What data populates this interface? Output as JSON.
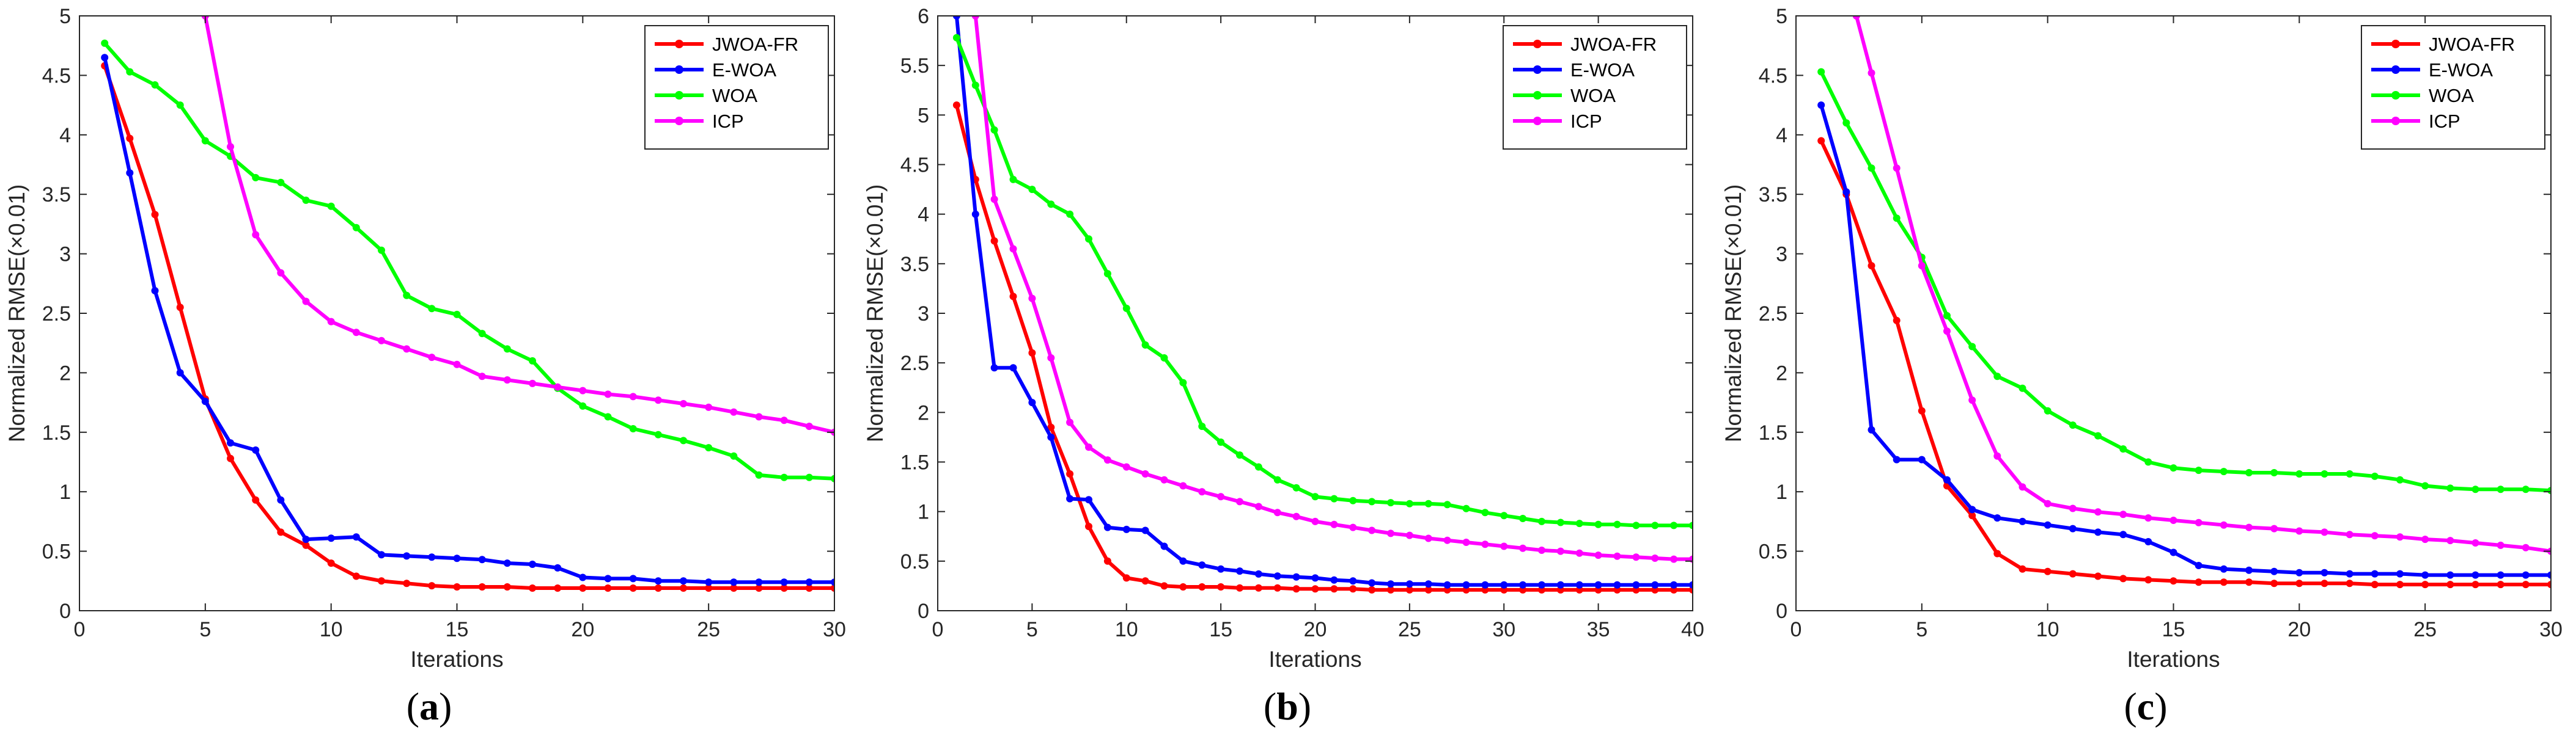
{
  "chart_data": [
    {
      "type": "line",
      "panel_label": "a",
      "xlabel": "Iterations",
      "ylabel": "Normalized RMSE(×0.01)",
      "xlim": [
        0,
        30
      ],
      "ylim": [
        0,
        5
      ],
      "xticks": [
        0,
        5,
        10,
        15,
        20,
        25,
        30
      ],
      "yticks": [
        0,
        0.5,
        1,
        1.5,
        2,
        2.5,
        3,
        3.5,
        4,
        4.5,
        5
      ],
      "grid": false,
      "legend": "top-right",
      "series": [
        {
          "name": "JWOA-FR",
          "color": "#ff0000",
          "x": [
            1,
            2,
            3,
            4,
            5,
            6,
            7,
            8,
            9,
            10,
            11,
            12,
            13,
            14,
            15,
            16,
            17,
            18,
            19,
            20,
            21,
            22,
            23,
            24,
            25,
            26,
            27,
            28,
            29,
            30
          ],
          "y": [
            4.58,
            3.97,
            3.33,
            2.55,
            1.78,
            1.28,
            0.93,
            0.66,
            0.55,
            0.4,
            0.29,
            0.25,
            0.23,
            0.21,
            0.2,
            0.2,
            0.2,
            0.19,
            0.19,
            0.19,
            0.19,
            0.19,
            0.19,
            0.19,
            0.19,
            0.19,
            0.19,
            0.19,
            0.19,
            0.19
          ]
        },
        {
          "name": "E-WOA",
          "color": "#0000ff",
          "x": [
            1,
            2,
            3,
            4,
            5,
            6,
            7,
            8,
            9,
            10,
            11,
            12,
            13,
            14,
            15,
            16,
            17,
            18,
            19,
            20,
            21,
            22,
            23,
            24,
            25,
            26,
            27,
            28,
            29,
            30
          ],
          "y": [
            4.65,
            3.68,
            2.69,
            2.0,
            1.76,
            1.41,
            1.35,
            0.93,
            0.6,
            0.61,
            0.62,
            0.47,
            0.46,
            0.45,
            0.44,
            0.43,
            0.4,
            0.39,
            0.36,
            0.28,
            0.27,
            0.27,
            0.25,
            0.25,
            0.24,
            0.24,
            0.24,
            0.24,
            0.24,
            0.24
          ]
        },
        {
          "name": "WOA",
          "color": "#00ff00",
          "x": [
            1,
            2,
            3,
            4,
            5,
            6,
            7,
            8,
            9,
            10,
            11,
            12,
            13,
            14,
            15,
            16,
            17,
            18,
            19,
            20,
            21,
            22,
            23,
            24,
            25,
            26,
            27,
            28,
            29,
            30
          ],
          "y": [
            4.77,
            4.53,
            4.42,
            4.25,
            3.95,
            3.82,
            3.64,
            3.6,
            3.45,
            3.4,
            3.22,
            3.03,
            2.65,
            2.54,
            2.49,
            2.33,
            2.2,
            2.1,
            1.87,
            1.72,
            1.63,
            1.53,
            1.48,
            1.43,
            1.37,
            1.3,
            1.14,
            1.12,
            1.12,
            1.11
          ]
        },
        {
          "name": "ICP",
          "color": "#ff00ff",
          "x": [
            5,
            6,
            7,
            8,
            9,
            10,
            11,
            12,
            13,
            14,
            15,
            16,
            17,
            18,
            19,
            20,
            21,
            22,
            23,
            24,
            25,
            26,
            27,
            28,
            29,
            30
          ],
          "y": [
            5.0,
            3.9,
            3.16,
            2.84,
            2.6,
            2.43,
            2.34,
            2.27,
            2.2,
            2.13,
            2.07,
            1.97,
            1.94,
            1.91,
            1.88,
            1.85,
            1.82,
            1.8,
            1.77,
            1.74,
            1.71,
            1.67,
            1.63,
            1.6,
            1.55,
            1.5
          ]
        }
      ]
    },
    {
      "type": "line",
      "panel_label": "b",
      "xlabel": "Iterations",
      "ylabel": "Normalized RMSE(×0.01)",
      "xlim": [
        0,
        40
      ],
      "ylim": [
        0,
        6
      ],
      "xticks": [
        0,
        5,
        10,
        15,
        20,
        25,
        30,
        35,
        40
      ],
      "yticks": [
        0,
        0.5,
        1,
        1.5,
        2,
        2.5,
        3,
        3.5,
        4,
        4.5,
        5,
        5.5,
        6
      ],
      "grid": false,
      "legend": "top-right",
      "series": [
        {
          "name": "JWOA-FR",
          "color": "#ff0000",
          "x": [
            1,
            2,
            3,
            4,
            5,
            6,
            7,
            8,
            9,
            10,
            11,
            12,
            13,
            14,
            15,
            16,
            17,
            18,
            19,
            20,
            21,
            22,
            23,
            24,
            25,
            26,
            27,
            28,
            29,
            30,
            31,
            32,
            33,
            34,
            35,
            36,
            37,
            38,
            39,
            40
          ],
          "y": [
            5.1,
            4.35,
            3.73,
            3.17,
            2.6,
            1.85,
            1.38,
            0.85,
            0.5,
            0.33,
            0.3,
            0.25,
            0.24,
            0.24,
            0.24,
            0.23,
            0.23,
            0.23,
            0.22,
            0.22,
            0.22,
            0.22,
            0.21,
            0.21,
            0.21,
            0.21,
            0.21,
            0.21,
            0.21,
            0.21,
            0.21,
            0.21,
            0.21,
            0.21,
            0.21,
            0.21,
            0.21,
            0.21,
            0.21,
            0.21
          ]
        },
        {
          "name": "E-WOA",
          "color": "#0000ff",
          "x": [
            1,
            2,
            3,
            4,
            5,
            6,
            7,
            8,
            9,
            10,
            11,
            12,
            13,
            14,
            15,
            16,
            17,
            18,
            19,
            20,
            21,
            22,
            23,
            24,
            25,
            26,
            27,
            28,
            29,
            30,
            31,
            32,
            33,
            34,
            35,
            36,
            37,
            38,
            39,
            40
          ],
          "y": [
            6.0,
            4.0,
            2.45,
            2.45,
            2.1,
            1.75,
            1.13,
            1.12,
            0.84,
            0.82,
            0.81,
            0.65,
            0.5,
            0.46,
            0.42,
            0.4,
            0.37,
            0.35,
            0.34,
            0.33,
            0.31,
            0.3,
            0.28,
            0.27,
            0.27,
            0.27,
            0.26,
            0.26,
            0.26,
            0.26,
            0.26,
            0.26,
            0.26,
            0.26,
            0.26,
            0.26,
            0.26,
            0.26,
            0.26,
            0.26
          ]
        },
        {
          "name": "WOA",
          "color": "#00ff00",
          "x": [
            1,
            2,
            3,
            4,
            5,
            6,
            7,
            8,
            9,
            10,
            11,
            12,
            13,
            14,
            15,
            16,
            17,
            18,
            19,
            20,
            21,
            22,
            23,
            24,
            25,
            26,
            27,
            28,
            29,
            30,
            31,
            32,
            33,
            34,
            35,
            36,
            37,
            38,
            39,
            40
          ],
          "y": [
            5.78,
            5.3,
            4.85,
            4.35,
            4.25,
            4.1,
            4.0,
            3.75,
            3.4,
            3.05,
            2.68,
            2.55,
            2.3,
            1.86,
            1.7,
            1.57,
            1.45,
            1.32,
            1.24,
            1.15,
            1.13,
            1.11,
            1.1,
            1.09,
            1.08,
            1.08,
            1.07,
            1.03,
            0.99,
            0.96,
            0.93,
            0.9,
            0.89,
            0.88,
            0.87,
            0.87,
            0.86,
            0.86,
            0.86,
            0.86
          ]
        },
        {
          "name": "ICP",
          "color": "#ff00ff",
          "x": [
            2,
            3,
            4,
            5,
            6,
            7,
            8,
            9,
            10,
            11,
            12,
            13,
            14,
            15,
            16,
            17,
            18,
            19,
            20,
            21,
            22,
            23,
            24,
            25,
            26,
            27,
            28,
            29,
            30,
            31,
            32,
            33,
            34,
            35,
            36,
            37,
            38,
            39,
            40
          ],
          "y": [
            6.0,
            4.15,
            3.65,
            3.15,
            2.55,
            1.9,
            1.65,
            1.52,
            1.45,
            1.38,
            1.32,
            1.26,
            1.2,
            1.15,
            1.1,
            1.05,
            0.99,
            0.95,
            0.9,
            0.87,
            0.84,
            0.81,
            0.78,
            0.76,
            0.73,
            0.71,
            0.69,
            0.67,
            0.65,
            0.63,
            0.61,
            0.6,
            0.58,
            0.56,
            0.55,
            0.54,
            0.53,
            0.52,
            0.52
          ]
        }
      ]
    },
    {
      "type": "line",
      "panel_label": "c",
      "xlabel": "Iterations",
      "ylabel": "Normalized RMSE(×0.01)",
      "xlim": [
        0,
        30
      ],
      "ylim": [
        0,
        5
      ],
      "xticks": [
        0,
        5,
        10,
        15,
        20,
        25,
        30
      ],
      "yticks": [
        0,
        0.5,
        1,
        1.5,
        2,
        2.5,
        3,
        3.5,
        4,
        4.5,
        5
      ],
      "grid": false,
      "legend": "top-right",
      "series": [
        {
          "name": "JWOA-FR",
          "color": "#ff0000",
          "x": [
            1,
            2,
            3,
            4,
            5,
            6,
            7,
            8,
            9,
            10,
            11,
            12,
            13,
            14,
            15,
            16,
            17,
            18,
            19,
            20,
            21,
            22,
            23,
            24,
            25,
            26,
            27,
            28,
            29,
            30
          ],
          "y": [
            3.95,
            3.5,
            2.9,
            2.44,
            1.68,
            1.05,
            0.8,
            0.48,
            0.35,
            0.33,
            0.31,
            0.29,
            0.27,
            0.26,
            0.25,
            0.24,
            0.24,
            0.24,
            0.23,
            0.23,
            0.23,
            0.23,
            0.22,
            0.22,
            0.22,
            0.22,
            0.22,
            0.22,
            0.22,
            0.22
          ]
        },
        {
          "name": "E-WOA",
          "color": "#0000ff",
          "x": [
            1,
            2,
            3,
            4,
            5,
            6,
            7,
            8,
            9,
            10,
            11,
            12,
            13,
            14,
            15,
            16,
            17,
            18,
            19,
            20,
            21,
            22,
            23,
            24,
            25,
            26,
            27,
            28,
            29,
            30
          ],
          "y": [
            4.25,
            3.52,
            1.52,
            1.27,
            1.27,
            1.1,
            0.85,
            0.78,
            0.75,
            0.72,
            0.69,
            0.66,
            0.64,
            0.58,
            0.49,
            0.38,
            0.35,
            0.34,
            0.33,
            0.32,
            0.32,
            0.31,
            0.31,
            0.31,
            0.3,
            0.3,
            0.3,
            0.3,
            0.3,
            0.3
          ]
        },
        {
          "name": "WOA",
          "color": "#00ff00",
          "x": [
            1,
            2,
            3,
            4,
            5,
            6,
            7,
            8,
            9,
            10,
            11,
            12,
            13,
            14,
            15,
            16,
            17,
            18,
            19,
            20,
            21,
            22,
            23,
            24,
            25,
            26,
            27,
            28,
            29,
            30
          ],
          "y": [
            4.53,
            4.1,
            3.72,
            3.3,
            2.97,
            2.48,
            2.22,
            1.97,
            1.87,
            1.68,
            1.56,
            1.47,
            1.36,
            1.25,
            1.2,
            1.18,
            1.17,
            1.16,
            1.16,
            1.15,
            1.15,
            1.15,
            1.13,
            1.1,
            1.05,
            1.03,
            1.02,
            1.02,
            1.02,
            1.01
          ]
        },
        {
          "name": "ICP",
          "color": "#ff00ff",
          "x": [
            2.4,
            3,
            4,
            5,
            6,
            7,
            8,
            9,
            10,
            11,
            12,
            13,
            14,
            15,
            16,
            17,
            18,
            19,
            20,
            21,
            22,
            23,
            24,
            25,
            26,
            27,
            28,
            29,
            30
          ],
          "y": [
            5.0,
            4.52,
            3.72,
            2.9,
            2.35,
            1.77,
            1.3,
            1.04,
            0.9,
            0.86,
            0.83,
            0.81,
            0.78,
            0.76,
            0.74,
            0.72,
            0.7,
            0.69,
            0.67,
            0.66,
            0.64,
            0.63,
            0.62,
            0.6,
            0.59,
            0.57,
            0.55,
            0.53,
            0.5
          ]
        }
      ]
    }
  ]
}
